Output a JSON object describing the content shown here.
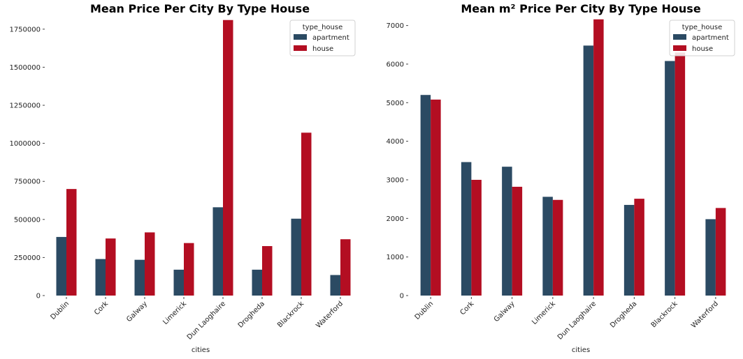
{
  "colors": {
    "apartment": "#2b4a63",
    "house": "#b30e22"
  },
  "chart_data": [
    {
      "type": "bar",
      "title": "Mean Price Per City By Type House",
      "xlabel": "cities",
      "ylabel": "",
      "categories": [
        "Dublin",
        "Cork",
        "Galway",
        "Limerick",
        "Dun Laoghaire",
        "Drogheda",
        "Blackrock",
        "Waterford"
      ],
      "series": [
        {
          "name": "apartment",
          "values": [
            385000,
            240000,
            235000,
            170000,
            580000,
            170000,
            505000,
            135000
          ]
        },
        {
          "name": "house",
          "values": [
            700000,
            375000,
            415000,
            345000,
            1810000,
            325000,
            1070000,
            370000
          ]
        }
      ],
      "ylim": [
        0,
        1850000
      ],
      "yticks": [
        0,
        250000,
        500000,
        750000,
        1000000,
        1250000,
        1500000,
        1750000
      ],
      "legend": {
        "title": "type_house",
        "position": "top-right"
      },
      "grid": false
    },
    {
      "type": "bar",
      "title": "Mean m² Price Per City By Type House",
      "xlabel": "cities",
      "ylabel": "",
      "categories": [
        "Dublin",
        "Cork",
        "Galway",
        "Limerick",
        "Dun Laoghaire",
        "Drogheda",
        "Blackrock",
        "Waterford"
      ],
      "series": [
        {
          "name": "apartment",
          "values": [
            5200,
            3460,
            3340,
            2560,
            6480,
            2350,
            6080,
            1980
          ]
        },
        {
          "name": "house",
          "values": [
            5080,
            3000,
            2820,
            2480,
            7160,
            2510,
            6300,
            2270
          ]
        }
      ],
      "ylim": [
        0,
        7300
      ],
      "yticks": [
        0,
        1000,
        2000,
        3000,
        4000,
        5000,
        6000,
        7000
      ],
      "legend": {
        "title": "type_house",
        "position": "top-right"
      },
      "grid": false
    }
  ]
}
